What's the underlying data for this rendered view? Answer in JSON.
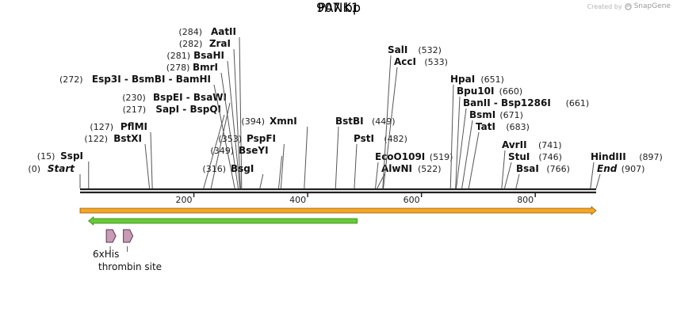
{
  "branding": {
    "created_by": "Created by",
    "app_name": "SnapGene"
  },
  "construct": {
    "name": "PANK1",
    "length_label": "907 bp"
  },
  "ruler": {
    "total_bp": 907,
    "ticks": [
      "200",
      "400",
      "600",
      "800"
    ]
  },
  "sites": [
    {
      "name": "Start",
      "pos_label": "(0)",
      "bp": 0,
      "italic": true,
      "col": "left",
      "row": 0
    },
    {
      "name": "SspI",
      "pos_label": "(15)",
      "bp": 15,
      "col": "left",
      "row": 1
    },
    {
      "name": "BstXI",
      "pos_label": "(122)",
      "bp": 122,
      "col": "left",
      "row": 2
    },
    {
      "name": "PflMI",
      "pos_label": "(127)",
      "bp": 127,
      "col": "left",
      "row": 3
    },
    {
      "name": "SapI - BspQI",
      "pos_label": "(217)",
      "bp": 217,
      "col": "left",
      "row": 4
    },
    {
      "name": "BspEI - BsaWI",
      "pos_label": "(230)",
      "bp": 230,
      "col": "left",
      "row": 5
    },
    {
      "name": "Esp3I - BsmBI - BamHI",
      "pos_label": "(272)",
      "bp": 272,
      "col": "left",
      "row": 6
    },
    {
      "name": "BmrI",
      "pos_label": "(278)",
      "bp": 278,
      "col": "left",
      "row": 7
    },
    {
      "name": "BsaHI",
      "pos_label": "(281)",
      "bp": 281,
      "col": "left",
      "row": 8
    },
    {
      "name": "ZraI",
      "pos_label": "(282)",
      "bp": 282,
      "col": "left",
      "row": 9
    },
    {
      "name": "AatII",
      "pos_label": "(284)",
      "bp": 284,
      "col": "left",
      "row": 10
    },
    {
      "name": "BsgI",
      "pos_label": "(316)",
      "bp": 316,
      "col": "mid",
      "row": 0
    },
    {
      "name": "BseYI",
      "pos_label": "(349)",
      "bp": 349,
      "col": "mid",
      "row": 1
    },
    {
      "name": "PspFI",
      "pos_label": "(353)",
      "bp": 353,
      "col": "mid",
      "row": 2
    },
    {
      "name": "XmnI",
      "pos_label": "(394)",
      "bp": 394,
      "col": "mid",
      "row": 3
    },
    {
      "name": "AlwNI",
      "pos_label": "(522)",
      "bp": 522,
      "col": "mid2",
      "row": 0,
      "labelAfter": true
    },
    {
      "name": "EcoO109I",
      "pos_label": "(519)",
      "bp": 519,
      "col": "mid2",
      "row": 1,
      "labelAfter": true
    },
    {
      "name": "PstI",
      "pos_label": "(482)",
      "bp": 482,
      "col": "mid2",
      "row": 2,
      "labelAfter": true
    },
    {
      "name": "BstBI",
      "pos_label": "(449)",
      "bp": 449,
      "col": "mid2",
      "row": 3,
      "labelAfter": true
    },
    {
      "name": "AccI",
      "pos_label": "(533)",
      "bp": 533,
      "col": "mid2",
      "row": 7,
      "labelAfter": true
    },
    {
      "name": "SalI",
      "pos_label": "(532)",
      "bp": 532,
      "col": "mid2",
      "row": 8,
      "labelAfter": true
    },
    {
      "name": "BsaI",
      "pos_label": "(766)",
      "bp": 766,
      "col": "right",
      "row": 0,
      "labelAfter": true
    },
    {
      "name": "StuI",
      "pos_label": "(746)",
      "bp": 746,
      "col": "right",
      "row": 1,
      "labelAfter": true
    },
    {
      "name": "AvrII",
      "pos_label": "(741)",
      "bp": 741,
      "col": "right",
      "row": 2,
      "labelAfter": true
    },
    {
      "name": "TatI",
      "pos_label": "(683)",
      "bp": 683,
      "col": "right",
      "row": 3,
      "labelAfter": true
    },
    {
      "name": "BsmI",
      "pos_label": "(671)",
      "bp": 671,
      "col": "right",
      "row": 4,
      "labelAfter": true
    },
    {
      "name": "BanII - Bsp1286I",
      "pos_label": "(661)",
      "bp": 661,
      "col": "right",
      "row": 5,
      "labelAfter": true
    },
    {
      "name": "Bpu10I",
      "pos_label": "(660)",
      "bp": 660,
      "col": "right",
      "row": 6,
      "labelAfter": true
    },
    {
      "name": "HpaI",
      "pos_label": "(651)",
      "bp": 651,
      "col": "right",
      "row": 7,
      "labelAfter": true
    },
    {
      "name": "End",
      "pos_label": "(907)",
      "bp": 907,
      "italic": true,
      "col": "far",
      "row": 0,
      "labelAfter": true
    },
    {
      "name": "HindIII",
      "pos_label": "(897)",
      "bp": 897,
      "col": "far",
      "row": 1,
      "labelAfter": true
    }
  ],
  "features": [
    {
      "name": "orange-feature",
      "start_bp": 0,
      "end_bp": 907,
      "direction": "forward",
      "color": "#f5a623"
    },
    {
      "name": "green-feature",
      "start_bp": 15,
      "end_bp": 487,
      "direction": "reverse",
      "color": "#66cc33"
    }
  ],
  "small_features": [
    {
      "label": "6xHis",
      "start_bp": 28,
      "end_bp": 45,
      "color": "#c89bb5"
    },
    {
      "label": "thrombin site",
      "start_bp": 58,
      "end_bp": 75,
      "color": "#c89bb5"
    }
  ]
}
